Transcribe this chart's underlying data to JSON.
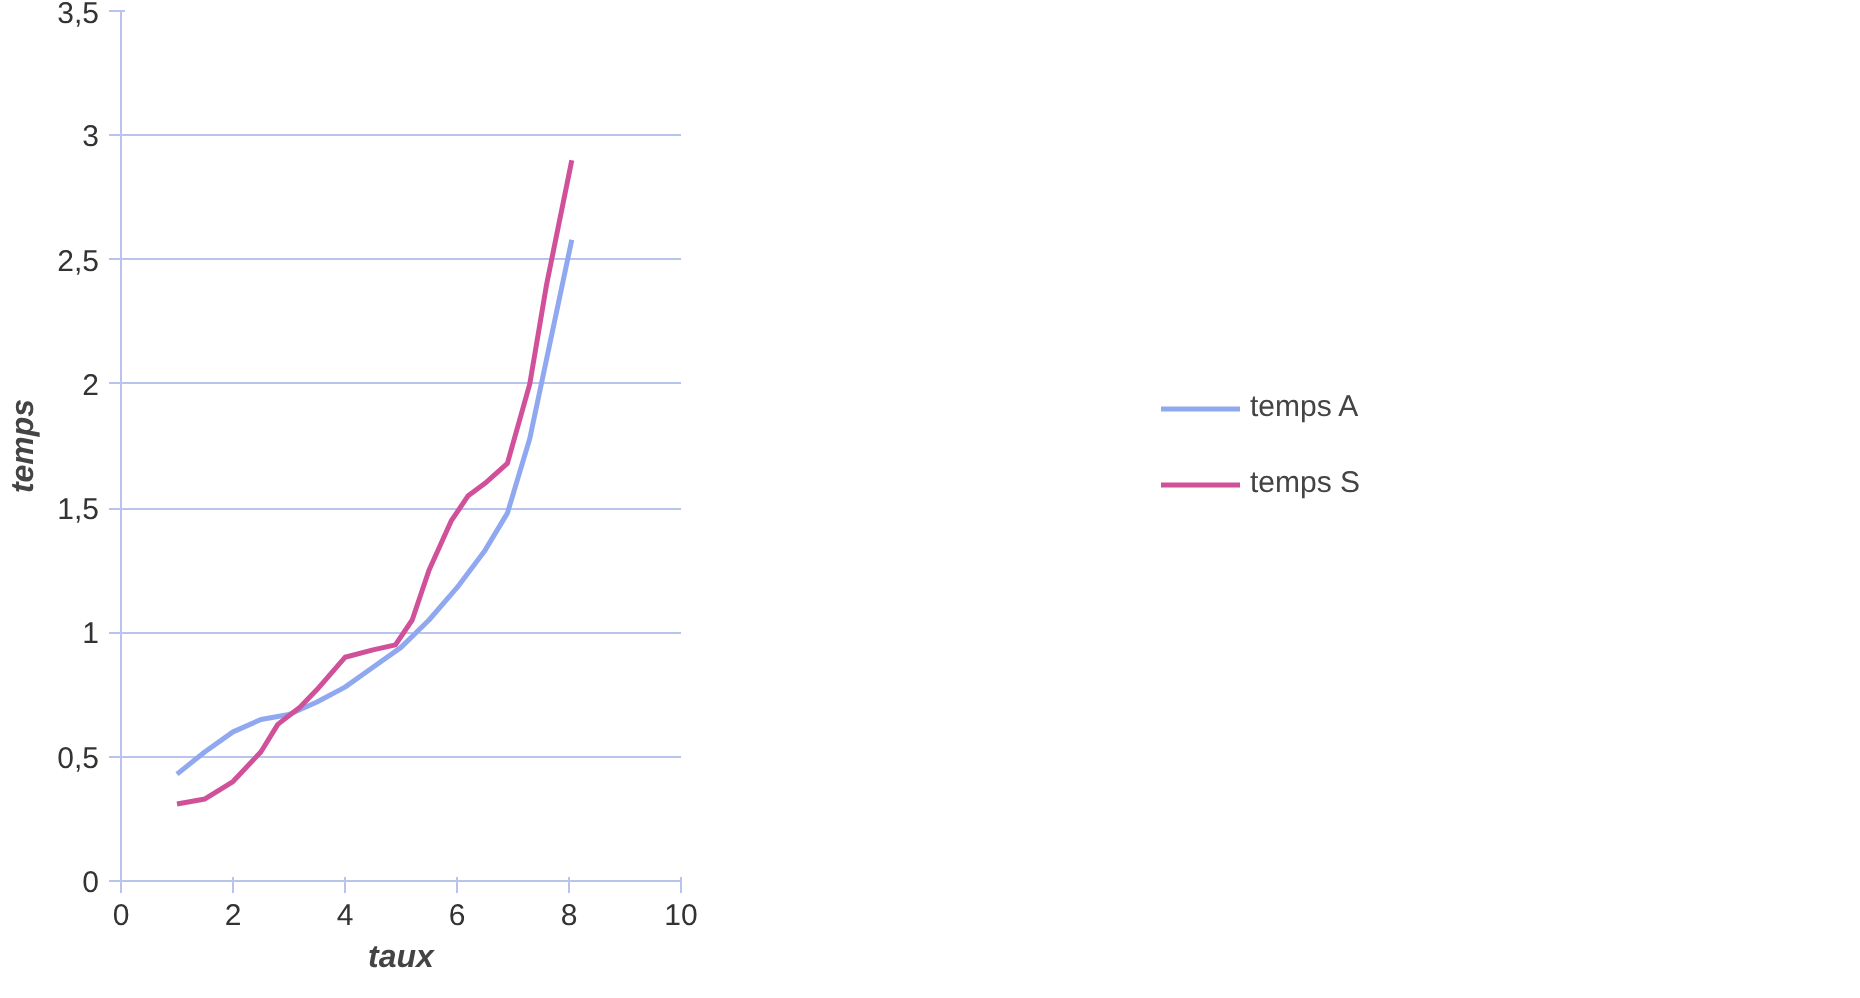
{
  "chart_data": {
    "type": "line",
    "xlabel": "taux",
    "ylabel": "temps",
    "xlim": [
      0,
      10
    ],
    "xticks": [
      0,
      2,
      4,
      6,
      8,
      10
    ],
    "ylim": [
      0,
      3.5
    ],
    "yticks": [
      0,
      {
        "value": 0.5,
        "label": "0,5"
      },
      1,
      {
        "value": 1.5,
        "label": "1,5"
      },
      2,
      {
        "value": 2.5,
        "label": "2,5"
      },
      3,
      {
        "value": 3.5,
        "label": "3,5"
      }
    ],
    "grid": "y",
    "legend": "right",
    "marker": "none",
    "line_style": "solid",
    "series": [
      {
        "name": "temps A",
        "color": "#8fa8f0",
        "x": [
          1,
          1.5,
          2,
          2.5,
          3,
          3.5,
          4,
          4.5,
          5,
          5.5,
          6,
          6.5,
          6.9,
          7.3,
          7.6,
          8.05
        ],
        "values": [
          0.43,
          0.52,
          0.6,
          0.65,
          0.67,
          0.72,
          0.78,
          0.86,
          0.94,
          1.05,
          1.18,
          1.33,
          1.48,
          1.78,
          2.1,
          2.58
        ]
      },
      {
        "name": "temps S",
        "color": "#d0509a",
        "x": [
          1,
          1.5,
          2,
          2.5,
          2.8,
          3.2,
          3.5,
          4,
          4.5,
          4.9,
          5.2,
          5.5,
          5.9,
          6.2,
          6.5,
          6.9,
          7.3,
          7.6,
          8.05
        ],
        "values": [
          0.31,
          0.33,
          0.4,
          0.52,
          0.63,
          0.7,
          0.77,
          0.9,
          0.93,
          0.95,
          1.05,
          1.25,
          1.45,
          1.55,
          1.6,
          1.68,
          2.0,
          2.4,
          2.9
        ]
      }
    ]
  }
}
